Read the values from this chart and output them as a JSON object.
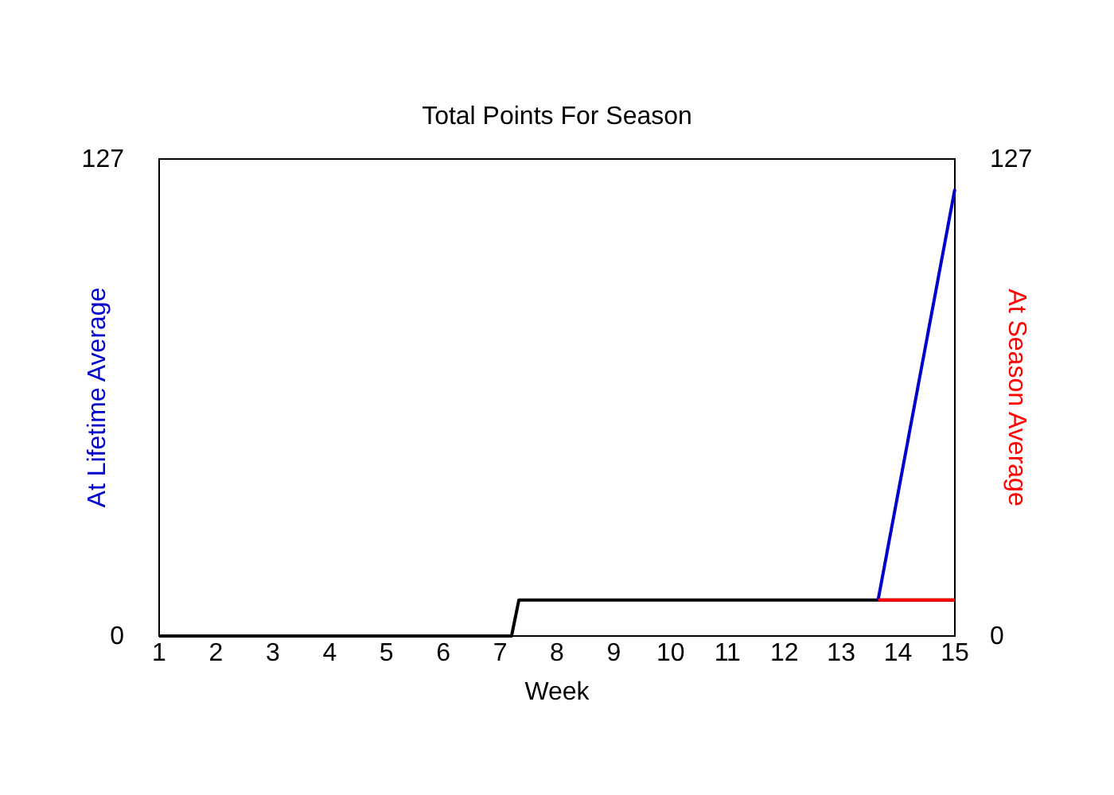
{
  "chart_data": {
    "type": "line",
    "title": "Total Points For Season",
    "xlabel": "Week",
    "ylabel": "At Lifetime Average",
    "y2label": "At Season Average",
    "xlim": [
      1,
      15
    ],
    "xticks": [
      1,
      2,
      3,
      4,
      5,
      6,
      7,
      8,
      9,
      10,
      11,
      12,
      13,
      14,
      15
    ],
    "ylim": [
      0,
      127
    ],
    "yticks": [
      0,
      127
    ],
    "y2lim": [
      0,
      127
    ],
    "y2ticks": [
      0,
      127
    ],
    "series": [
      {
        "color": "#000000",
        "x": [
          1,
          7.2,
          7.33,
          13.65,
          15
        ],
        "values": [
          0,
          0,
          9.6,
          9.6,
          9.6
        ]
      },
      {
        "color": "#0000cc",
        "x": [
          13.65,
          15
        ],
        "values": [
          9.6,
          119
        ]
      },
      {
        "color": "#ff0000",
        "axis": "y2",
        "x": [
          13.65,
          15
        ],
        "values": [
          9.6,
          9.6
        ]
      }
    ]
  }
}
